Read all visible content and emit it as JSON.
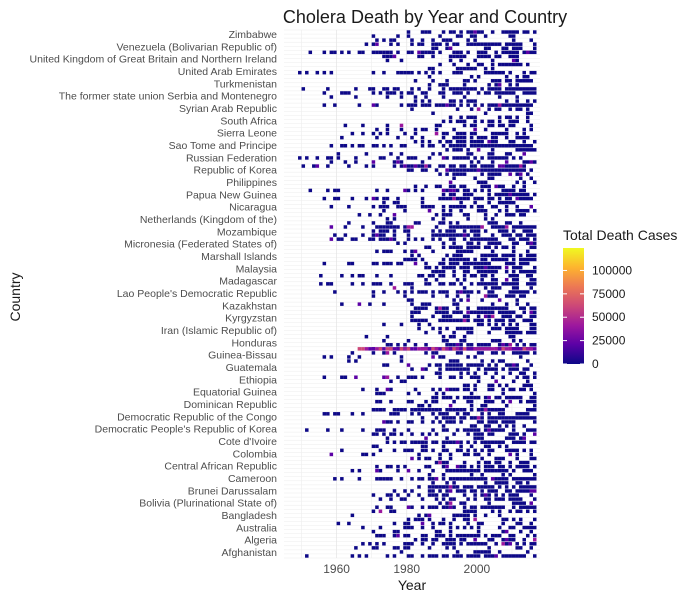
{
  "chart_data": {
    "type": "heatmap",
    "title": "Cholera Death by Year and Country",
    "xlabel": "Year",
    "ylabel": "Country",
    "xlim": [
      1945,
      2018
    ],
    "x_ticks": [
      1960,
      1980,
      2000
    ],
    "y_categories_legible": [
      "Zimbabwe",
      "Venezuela (Bolivarian Republic of)",
      "United Kingdom of Great Britain and Northern Ireland",
      "United Arab Emirates",
      "Turkmenistan",
      "The former state union Serbia and Montenegro",
      "Syrian Arab Republic",
      "South Africa",
      "Sierra Leone",
      "Sao Tome and Principe",
      "Russian Federation",
      "Republic of Korea",
      "Philippines",
      "Papua New Guinea",
      "Nicaragua",
      "Netherlands (Kingdom of the)",
      "Mozambique",
      "Micronesia (Federated States of)",
      "Marshall Islands",
      "Malaysia",
      "Madagascar",
      "Lao People's Democratic Republic",
      "Kazakhstan",
      "Kyrgyzstan",
      "Iran (Islamic Republic of)",
      "Honduras",
      "Guinea-Bissau",
      "Guatemala",
      "Ethiopia",
      "Equatorial Guinea",
      "Dominican Republic",
      "Democratic Republic of the Congo",
      "Democratic People's Republic of Korea",
      "Cote d'Ivoire",
      "Colombia",
      "Central African Republic",
      "Cameroon",
      "Brunei Darussalam",
      "Bolivia (Plurinational State of)",
      "Bangladesh",
      "Australia",
      "Algeria",
      "Afghanistan"
    ],
    "legend": {
      "title": "Total Death Cases",
      "placement": "right",
      "ticks": [
        0,
        25000,
        50000,
        75000,
        100000
      ],
      "tick_labels": [
        "0",
        "25000",
        "50000",
        "75000",
        "100000"
      ],
      "range": [
        0,
        124000
      ],
      "colors": [
        "#0d0887",
        "#5c01a6",
        "#9c179e",
        "#cc4778",
        "#ed7953",
        "#fdb32f",
        "#f0f921"
      ]
    },
    "grid": true
  }
}
